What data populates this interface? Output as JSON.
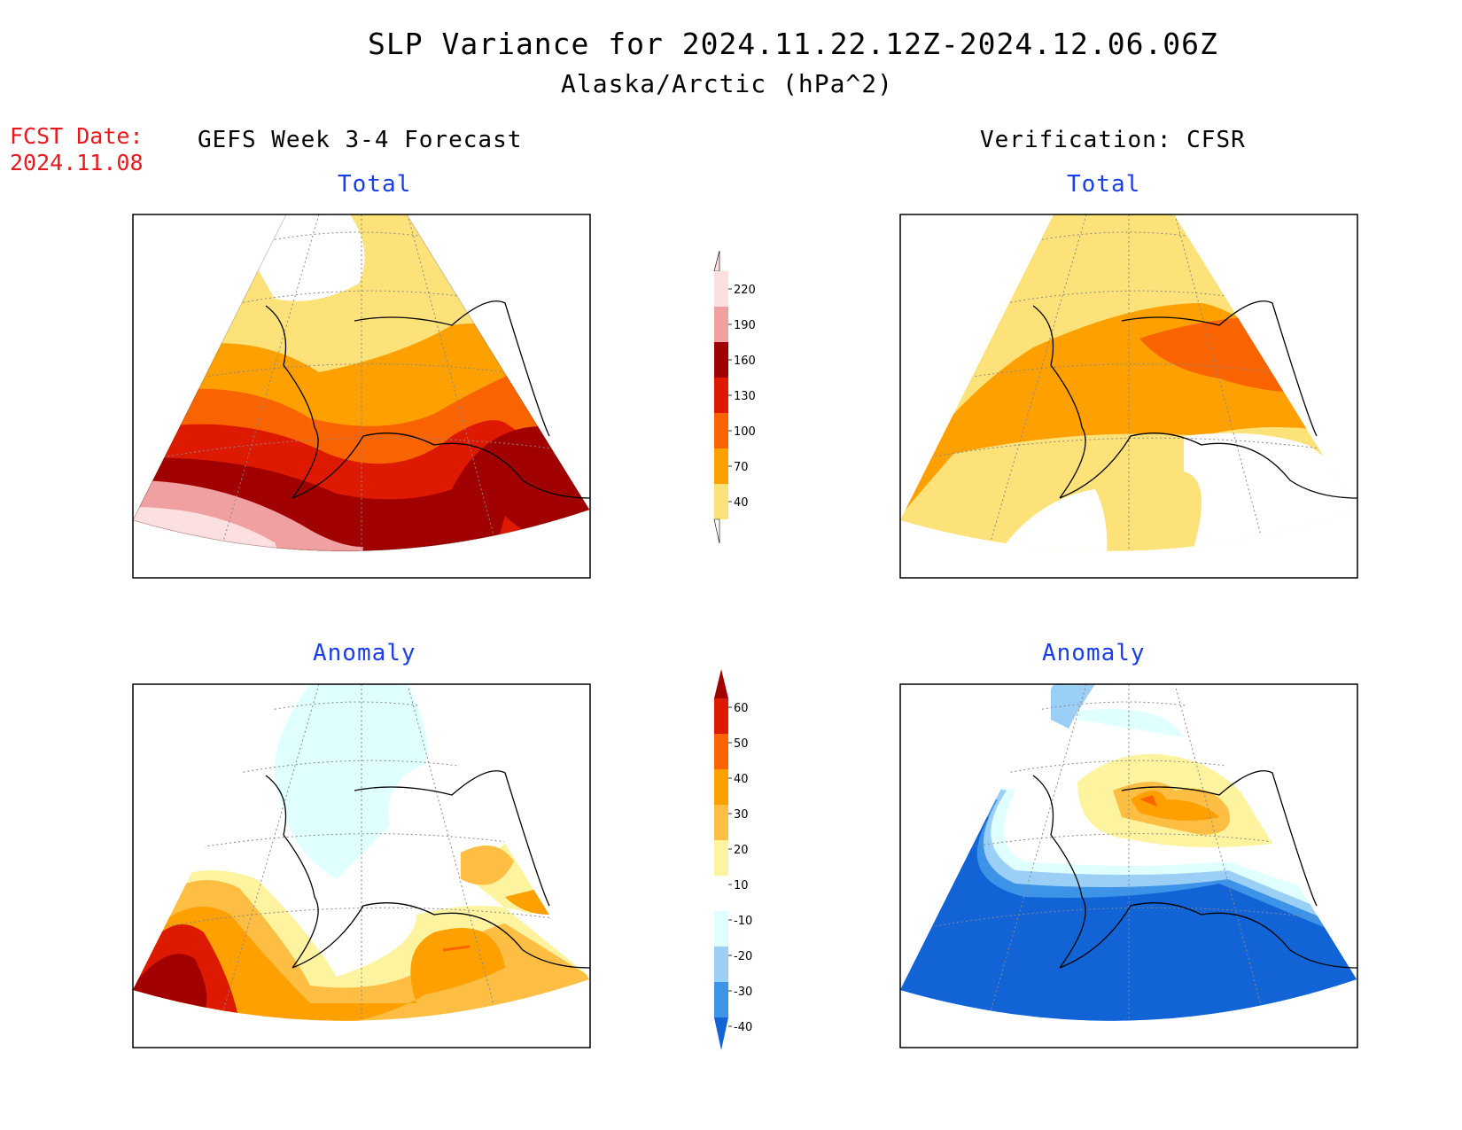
{
  "header": {
    "title": "SLP Variance for 2024.11.22.12Z-2024.12.06.06Z",
    "subtitle": "Alaska/Arctic (hPa^2)",
    "fcst_date_label": "FCST Date:",
    "fcst_date": "2024.11.08"
  },
  "columns": {
    "left": "GEFS Week 3-4 Forecast",
    "right": "Verification: CFSR"
  },
  "panels": {
    "top_left": "Total",
    "top_right": "Total",
    "bottom_left": "Anomaly",
    "bottom_right": "Anomaly"
  },
  "colorbars": {
    "total": {
      "labels": [
        "220",
        "190",
        "160",
        "130",
        "100",
        "70",
        "40"
      ],
      "colors": [
        "#fce0e0",
        "#f0a0a0",
        "#a00000",
        "#dd1a00",
        "#fa6400",
        "#fda000",
        "#fde27a",
        "#ffffff"
      ]
    },
    "anomaly": {
      "labels": [
        "60",
        "50",
        "40",
        "30",
        "20",
        "10",
        "-10",
        "-20",
        "-30",
        "-40"
      ],
      "colors": [
        "#a00000",
        "#dd1a00",
        "#fa6400",
        "#fda000",
        "#fdbe43",
        "#fef4a0",
        "#ffffff",
        "#e0ffff",
        "#9ccff5",
        "#3c93e8",
        "#1163d6"
      ]
    }
  },
  "palette": {
    "white": "#ffffff",
    "yellow": "#fde27a",
    "orange_light": "#fda000",
    "orange": "#fa6400",
    "red": "#dd1a00",
    "darkred": "#a00000",
    "pink": "#f0a0a0",
    "pale_pink": "#fce0e0",
    "anom_yellow_pale": "#fef4a0",
    "anom_yellow": "#fdbe43",
    "anom_cyan": "#e0ffff",
    "anom_blue_light": "#9ccff5",
    "anom_blue_mid": "#3c93e8",
    "anom_blue": "#1163d6",
    "title_blue": "#1a3ee8",
    "fcst_red": "#e8181c"
  }
}
